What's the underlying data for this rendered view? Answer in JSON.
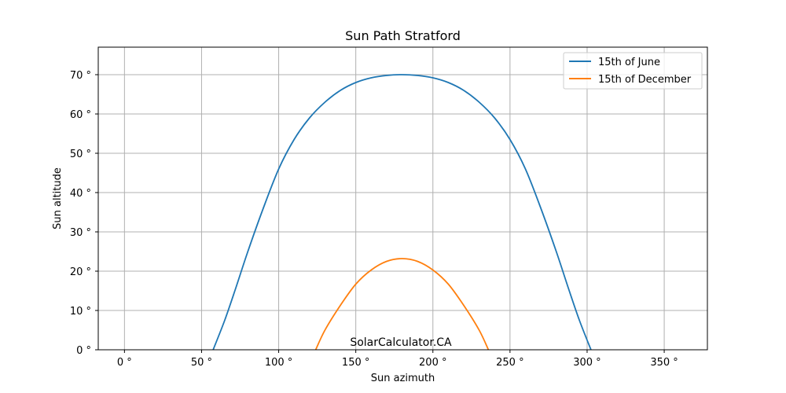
{
  "chart_data": {
    "type": "line",
    "title": "Sun Path Stratford",
    "xlabel": "Sun azimuth",
    "ylabel": "Sun altitude",
    "xlim": [
      -17,
      378
    ],
    "ylim": [
      0,
      77
    ],
    "xticks": [
      0,
      50,
      100,
      150,
      200,
      250,
      300,
      350
    ],
    "xtick_labels": [
      "0 °",
      "50 °",
      "100 °",
      "150 °",
      "200 °",
      "250 °",
      "300 °",
      "350 °"
    ],
    "yticks": [
      0,
      10,
      20,
      30,
      40,
      50,
      60,
      70
    ],
    "ytick_labels": [
      "0 °",
      "10 °",
      "20 °",
      "30 °",
      "40 °",
      "50 °",
      "60 °",
      "70 °"
    ],
    "grid": true,
    "legend": "top-right",
    "annotation": "SolarCalculator.CA",
    "series": [
      {
        "name": "15th of June",
        "color": "#1f77b4",
        "x": [
          57.5,
          65,
          72,
          80,
          90,
          100,
          110,
          120,
          130,
          140,
          150,
          160,
          170,
          180,
          190,
          200,
          210,
          220,
          230,
          240,
          250,
          260,
          270,
          280,
          288,
          295,
          302.5
        ],
        "y": [
          0,
          7.5,
          15.5,
          25,
          36,
          46,
          53.5,
          59,
          63,
          66,
          68,
          69.2,
          69.8,
          70,
          69.8,
          69.2,
          68,
          66,
          63,
          59,
          53.5,
          46,
          36,
          25,
          15.5,
          7.5,
          0
        ]
      },
      {
        "name": "15th of December",
        "color": "#ff7f0e",
        "x": [
          124,
          130,
          140,
          150,
          160,
          170,
          180,
          190,
          200,
          210,
          220,
          230,
          236
        ],
        "y": [
          0,
          5,
          11.3,
          16.7,
          20.3,
          22.5,
          23.2,
          22.5,
          20.3,
          16.7,
          11.3,
          5,
          0
        ]
      }
    ]
  }
}
